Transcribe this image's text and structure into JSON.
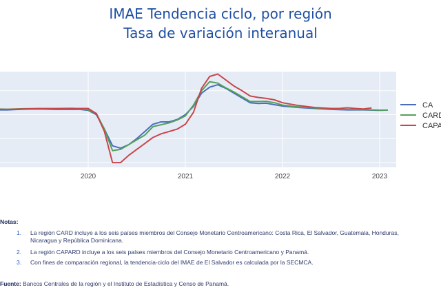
{
  "title_line1": "IMAE Tendencia ciclo, por región",
  "title_line2": "Tasa de variación interanual",
  "chart_data": {
    "type": "line",
    "title": "IMAE Tendencia ciclo, por región",
    "subtitle": "Tasa de variación interanual",
    "x_ticks": [
      "2020",
      "2021",
      "2022",
      "2023"
    ],
    "x_range": [
      "2019-01",
      "2023-03"
    ],
    "y_range": [
      -22,
      18
    ],
    "grid": true,
    "legend_position": "right",
    "series": [
      {
        "name": "CA",
        "color": "#4a6dbd",
        "points": [
          [
            "2019-01",
            2.0
          ],
          [
            "2019-03",
            2.0
          ],
          [
            "2019-05",
            2.3
          ],
          [
            "2019-07",
            2.4
          ],
          [
            "2019-09",
            2.2
          ],
          [
            "2019-11",
            2.2
          ],
          [
            "2019-12",
            2.2
          ],
          [
            "2020-01",
            1.8
          ],
          [
            "2020-02",
            0.0
          ],
          [
            "2020-03",
            -6.0
          ],
          [
            "2020-04",
            -13.0
          ],
          [
            "2020-05",
            -14.0
          ],
          [
            "2020-06",
            -12.5
          ],
          [
            "2020-07",
            -10.0
          ],
          [
            "2020-08",
            -7.0
          ],
          [
            "2020-09",
            -4.0
          ],
          [
            "2020-10",
            -3.0
          ],
          [
            "2020-11",
            -3.0
          ],
          [
            "2020-12",
            -2.0
          ],
          [
            "2021-01",
            0.0
          ],
          [
            "2021-02",
            3.5
          ],
          [
            "2021-03",
            9.0
          ],
          [
            "2021-04",
            11.5
          ],
          [
            "2021-05",
            12.5
          ],
          [
            "2021-06",
            11.0
          ],
          [
            "2021-07",
            9.0
          ],
          [
            "2021-08",
            7.0
          ],
          [
            "2021-09",
            5.0
          ],
          [
            "2021-10",
            4.7
          ],
          [
            "2021-11",
            4.8
          ],
          [
            "2021-12",
            4.2
          ],
          [
            "2022-01",
            3.6
          ],
          [
            "2022-03",
            3.0
          ],
          [
            "2022-05",
            2.6
          ],
          [
            "2022-07",
            2.2
          ],
          [
            "2022-09",
            2.0
          ],
          [
            "2022-11",
            2.0
          ],
          [
            "2023-01",
            1.8
          ],
          [
            "2023-02",
            1.9
          ]
        ]
      },
      {
        "name": "CARD",
        "color": "#55a05a",
        "points": [
          [
            "2019-01",
            2.4
          ],
          [
            "2019-03",
            2.3
          ],
          [
            "2019-05",
            2.5
          ],
          [
            "2019-07",
            2.6
          ],
          [
            "2019-09",
            2.6
          ],
          [
            "2019-11",
            2.7
          ],
          [
            "2019-12",
            2.5
          ],
          [
            "2020-01",
            2.0
          ],
          [
            "2020-02",
            0.5
          ],
          [
            "2020-03",
            -6.0
          ],
          [
            "2020-04",
            -15.0
          ],
          [
            "2020-05",
            -14.5
          ],
          [
            "2020-06",
            -12.5
          ],
          [
            "2020-07",
            -10.5
          ],
          [
            "2020-08",
            -8.5
          ],
          [
            "2020-09",
            -5.0
          ],
          [
            "2020-10",
            -4.2
          ],
          [
            "2020-11",
            -3.4
          ],
          [
            "2020-12",
            -2.2
          ],
          [
            "2021-01",
            -0.5
          ],
          [
            "2021-02",
            4.0
          ],
          [
            "2021-03",
            10.0
          ],
          [
            "2021-04",
            13.8
          ],
          [
            "2021-05",
            13.2
          ],
          [
            "2021-06",
            11.2
          ],
          [
            "2021-07",
            9.5
          ],
          [
            "2021-08",
            7.5
          ],
          [
            "2021-09",
            5.5
          ],
          [
            "2021-10",
            5.5
          ],
          [
            "2021-11",
            5.6
          ],
          [
            "2021-12",
            5.0
          ],
          [
            "2022-01",
            4.0
          ],
          [
            "2022-03",
            3.2
          ],
          [
            "2022-05",
            2.8
          ],
          [
            "2022-07",
            2.4
          ],
          [
            "2022-09",
            2.2
          ],
          [
            "2022-11",
            2.1
          ],
          [
            "2023-01",
            1.9
          ],
          [
            "2023-02",
            1.9
          ]
        ]
      },
      {
        "name": "CAPARD",
        "color": "#c8464b",
        "points": [
          [
            "2019-01",
            2.2
          ],
          [
            "2019-03",
            2.2
          ],
          [
            "2019-05",
            2.4
          ],
          [
            "2019-07",
            2.5
          ],
          [
            "2019-09",
            2.5
          ],
          [
            "2019-11",
            2.6
          ],
          [
            "2019-12",
            2.6
          ],
          [
            "2020-01",
            2.6
          ],
          [
            "2020-02",
            0.5
          ],
          [
            "2020-03",
            -7.0
          ],
          [
            "2020-04",
            -20.0
          ],
          [
            "2020-05",
            -20.0
          ],
          [
            "2020-06",
            -17.0
          ],
          [
            "2020-07",
            -14.5
          ],
          [
            "2020-08",
            -12.0
          ],
          [
            "2020-09",
            -9.5
          ],
          [
            "2020-10",
            -8.0
          ],
          [
            "2020-11",
            -7.0
          ],
          [
            "2020-12",
            -6.0
          ],
          [
            "2021-01",
            -4.0
          ],
          [
            "2021-02",
            1.0
          ],
          [
            "2021-03",
            11.0
          ],
          [
            "2021-04",
            16.0
          ],
          [
            "2021-05",
            17.0
          ],
          [
            "2021-06",
            14.5
          ],
          [
            "2021-07",
            12.0
          ],
          [
            "2021-08",
            10.0
          ],
          [
            "2021-09",
            7.8
          ],
          [
            "2021-10",
            7.2
          ],
          [
            "2021-11",
            6.8
          ],
          [
            "2021-12",
            6.2
          ],
          [
            "2022-01",
            5.0
          ],
          [
            "2022-03",
            3.8
          ],
          [
            "2022-05",
            3.0
          ],
          [
            "2022-07",
            2.6
          ],
          [
            "2022-08",
            2.6
          ],
          [
            "2022-09",
            2.9
          ],
          [
            "2022-10",
            2.6
          ],
          [
            "2022-11",
            2.4
          ],
          [
            "2022-12",
            2.8
          ]
        ]
      }
    ]
  },
  "legend_labels": [
    "CA",
    "CARD",
    "CAPARD"
  ],
  "notes_header": "Notas:",
  "notes": [
    {
      "num": "1.",
      "text": "La región CARD incluye a los seis países miembros del Consejo Monetario Centroamericano: Costa Rica, El Salvador, Guatemala, Honduras, Nicaragua y República Dominicana."
    },
    {
      "num": "2.",
      "text": "La región CAPARD incluye a los seis países miembros del Consejo Monetario Centroamericano y Panamá."
    },
    {
      "num": "3.",
      "text": "Con fines de comparación regional, la tendencia-ciclo del IMAE de El Salvador es calculada por la SECMCA."
    }
  ],
  "source_label": "Fuente:",
  "source_text": " Bancos Centrales de la región y el Instituto de Estadística y Censo de Panamá."
}
